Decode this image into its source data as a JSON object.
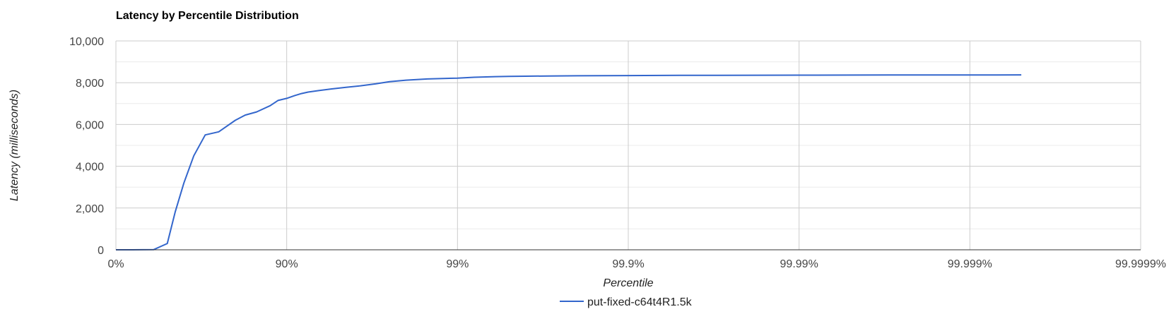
{
  "chart_data": {
    "type": "line",
    "title": "Latency by Percentile Distribution",
    "xlabel": "Percentile",
    "ylabel": "Latency (milliseconds)",
    "x_scale": "log-percentile (nines)",
    "x_ticks": [
      "0%",
      "90%",
      "99%",
      "99.9%",
      "99.99%",
      "99.999%",
      "99.9999%"
    ],
    "x_tick_values": [
      0,
      90,
      99,
      99.9,
      99.99,
      99.999,
      99.9999
    ],
    "y_ticks": [
      "0",
      "2,000",
      "4,000",
      "6,000",
      "8,000",
      "10,000"
    ],
    "y_tick_values": [
      0,
      2000,
      4000,
      6000,
      8000,
      10000
    ],
    "ylim": [
      0,
      10000
    ],
    "grid": true,
    "legend": "bottom",
    "series": [
      {
        "name": "put-fixed-c64t4R1.5k",
        "color": "#3366cc",
        "x": [
          0,
          20,
          40,
          50,
          55,
          60,
          65,
          70,
          75,
          80,
          82.5,
          85,
          87.5,
          88.75,
          90,
          91,
          91.8,
          92.5,
          93.5,
          94.5,
          95.5,
          96.3,
          97,
          97.5,
          98,
          98.5,
          99,
          99.2,
          99.4,
          99.5,
          99.6,
          99.7,
          99.8,
          99.9,
          99.92,
          99.95,
          99.97,
          99.99,
          99.992,
          99.995,
          99.997,
          99.999,
          99.9993,
          99.9995
        ],
        "y": [
          0,
          0,
          10,
          300,
          1800,
          3200,
          4500,
          5500,
          5650,
          6200,
          6450,
          6600,
          6900,
          7150,
          7250,
          7380,
          7480,
          7550,
          7620,
          7700,
          7780,
          7850,
          7950,
          8050,
          8120,
          8180,
          8220,
          8260,
          8290,
          8300,
          8310,
          8320,
          8330,
          8340,
          8345,
          8350,
          8355,
          8360,
          8362,
          8365,
          8368,
          8370,
          8373,
          8375
        ]
      }
    ]
  }
}
